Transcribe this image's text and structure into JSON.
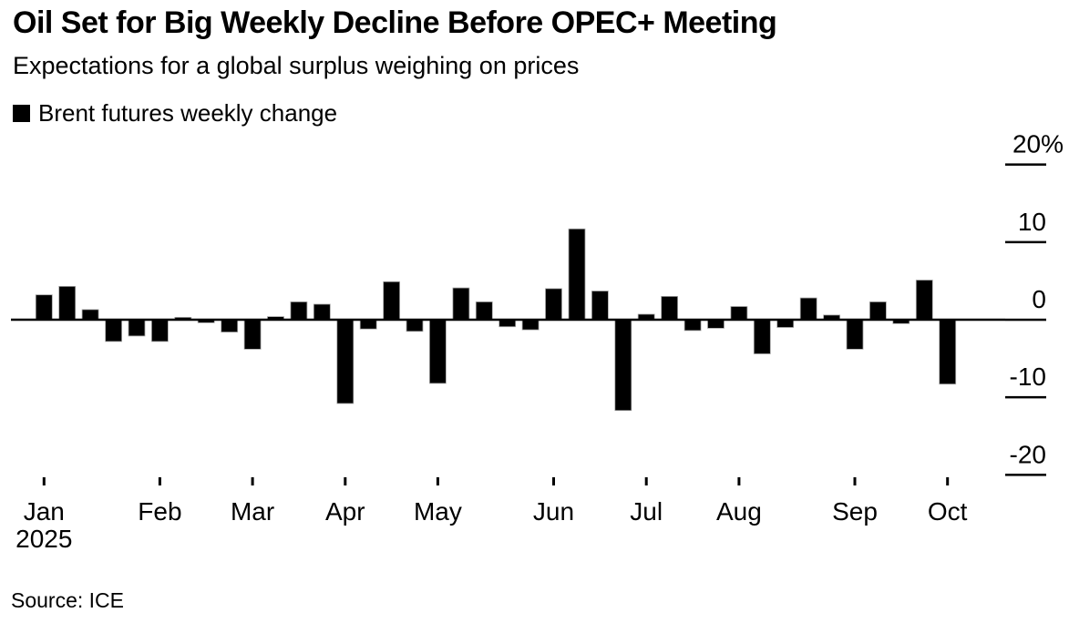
{
  "header": {
    "title": "Oil Set for Big Weekly Decline Before OPEC+ Meeting",
    "subtitle": "Expectations for a global surplus weighing on prices"
  },
  "legend": {
    "label": "Brent futures weekly change",
    "swatch_color": "#000000"
  },
  "source": "Source: ICE",
  "chart_data": {
    "type": "bar",
    "title": "Brent futures weekly change",
    "unit": "%",
    "values": [
      3.2,
      4.3,
      1.3,
      -2.8,
      -2.1,
      -2.8,
      0.3,
      -0.4,
      -1.6,
      -3.8,
      0.4,
      2.3,
      2.0,
      -10.8,
      -1.2,
      4.9,
      -1.5,
      -8.2,
      4.1,
      2.3,
      -0.9,
      -1.3,
      4.0,
      11.7,
      3.7,
      -11.7,
      0.7,
      3.0,
      -1.4,
      -1.1,
      1.7,
      -4.4,
      -1.0,
      2.8,
      0.6,
      -3.8,
      2.3,
      -0.5,
      5.1,
      -8.3
    ],
    "month_ticks": [
      {
        "label": "Jan",
        "week": 1
      },
      {
        "label": "Feb",
        "week": 6
      },
      {
        "label": "Mar",
        "week": 10
      },
      {
        "label": "Apr",
        "week": 14
      },
      {
        "label": "May",
        "week": 18
      },
      {
        "label": "Jun",
        "week": 23
      },
      {
        "label": "Jul",
        "week": 27
      },
      {
        "label": "Aug",
        "week": 31
      },
      {
        "label": "Sep",
        "week": 36
      },
      {
        "label": "Oct",
        "week": 40
      }
    ],
    "year_label": "2025",
    "y_ticks": [
      {
        "label": "20%",
        "value": 20
      },
      {
        "label": "10",
        "value": 10
      },
      {
        "label": "0",
        "value": 0
      },
      {
        "label": "-10",
        "value": -10
      },
      {
        "label": "-20",
        "value": -20
      }
    ],
    "ylim": [
      -24,
      23
    ],
    "grid": false,
    "legend_position": "top-left",
    "bar_color": "#000000",
    "axis_color": "#000000"
  }
}
